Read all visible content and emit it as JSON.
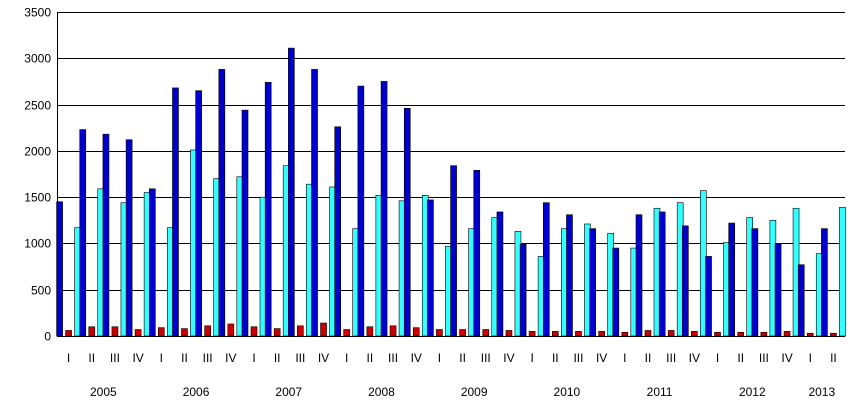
{
  "chart_data": {
    "type": "bar",
    "ylim": [
      0,
      3500
    ],
    "yticks": [
      0,
      500,
      1000,
      1500,
      2000,
      2500,
      3000,
      3500
    ],
    "grid": true,
    "categories": [
      "I",
      "II",
      "III",
      "IV",
      "I",
      "II",
      "III",
      "IV",
      "I",
      "II",
      "III",
      "IV",
      "I",
      "II",
      "III",
      "IV",
      "I",
      "II",
      "III",
      "IV",
      "I",
      "II",
      "III",
      "IV",
      "I",
      "II",
      "III",
      "IV",
      "I",
      "II",
      "III",
      "IV",
      "I",
      "II"
    ],
    "years": [
      {
        "label": "2005",
        "start": 0,
        "end": 3
      },
      {
        "label": "2006",
        "start": 4,
        "end": 7
      },
      {
        "label": "2007",
        "start": 8,
        "end": 11
      },
      {
        "label": "2008",
        "start": 12,
        "end": 15
      },
      {
        "label": "2009",
        "start": 16,
        "end": 19
      },
      {
        "label": "2010",
        "start": 20,
        "end": 23
      },
      {
        "label": "2011",
        "start": 24,
        "end": 27
      },
      {
        "label": "2012",
        "start": 28,
        "end": 31
      },
      {
        "label": "2013",
        "start": 32,
        "end": 33
      }
    ],
    "series": [
      {
        "color": "#0000CC",
        "values": [
          1450,
          2230,
          2180,
          2120,
          1590,
          2680,
          2650,
          2880,
          2440,
          2740,
          3110,
          2880,
          2260,
          2700,
          2750,
          2460,
          1470,
          1840,
          1790,
          1340,
          990,
          1440,
          1310,
          1160,
          950,
          1310,
          1340,
          1190,
          860,
          1220,
          1160,
          1000,
          770,
          1160
        ]
      },
      {
        "color": "#CC0000",
        "values": [
          60,
          100,
          100,
          70,
          90,
          80,
          110,
          130,
          100,
          80,
          110,
          140,
          70,
          100,
          110,
          90,
          70,
          70,
          70,
          60,
          50,
          50,
          50,
          50,
          40,
          60,
          60,
          50,
          40,
          40,
          40,
          50,
          30,
          30
        ]
      },
      {
        "color": "#33FFFF",
        "values": [
          1170,
          1590,
          1440,
          1550,
          1170,
          2010,
          1700,
          1720,
          1500,
          1840,
          1640,
          1610,
          1160,
          1520,
          1460,
          1520,
          970,
          1160,
          1280,
          1130,
          860,
          1160,
          1210,
          1110,
          950,
          1380,
          1440,
          1570,
          1010,
          1280,
          1250,
          1380,
          890,
          1390
        ]
      }
    ]
  }
}
